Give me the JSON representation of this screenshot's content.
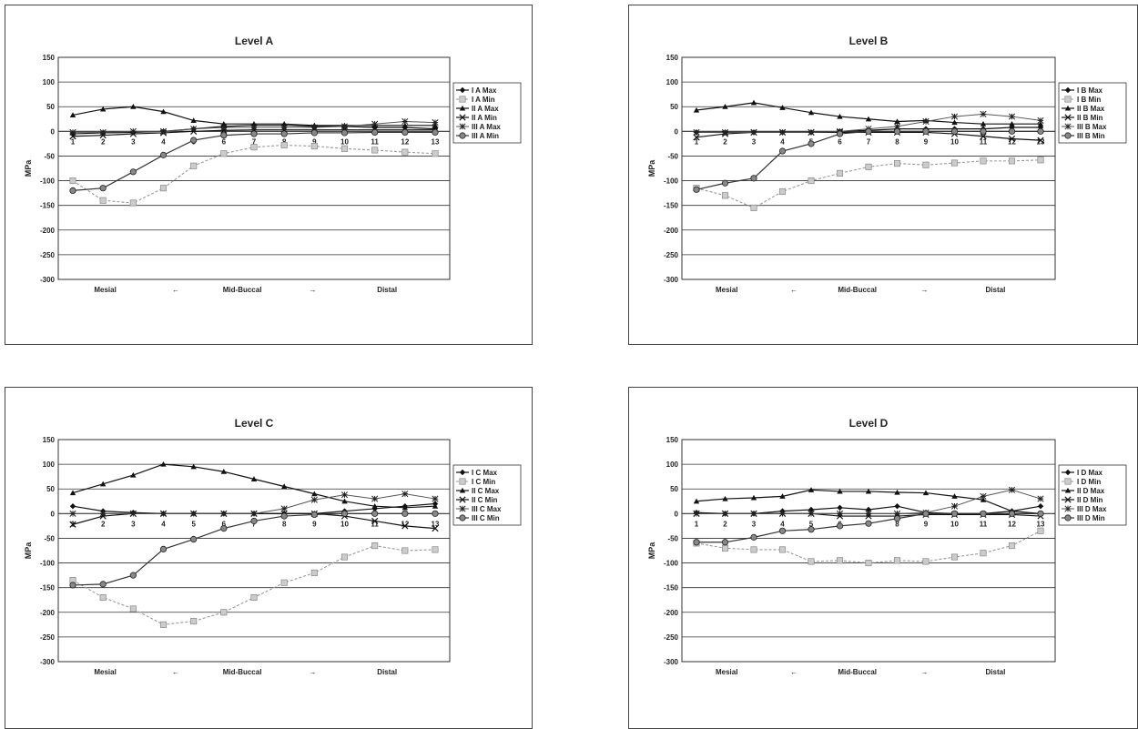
{
  "chart_data": [
    {
      "type": "line",
      "title": "Level A",
      "ylabel": "MPa",
      "ylim": [
        -300,
        150
      ],
      "yticks": [
        150,
        100,
        50,
        0,
        -50,
        -100,
        -150,
        -200,
        -250,
        -300
      ],
      "x": [
        1,
        2,
        3,
        4,
        5,
        6,
        7,
        8,
        9,
        10,
        11,
        12,
        13
      ],
      "xsub": {
        "left": "Mesial",
        "mid": "Mid-Buccal",
        "right": "Distal",
        "arrow_left": "←",
        "arrow_right": "→"
      },
      "grid": true,
      "legend": "right",
      "series": [
        {
          "name": "I A Max",
          "marker": "diamond",
          "line": "solid",
          "values": [
            -5,
            -3,
            -2,
            0,
            5,
            10,
            12,
            12,
            10,
            10,
            8,
            8,
            5
          ]
        },
        {
          "name": "I A Min",
          "marker": "x-box",
          "line": "dashed",
          "values": [
            -100,
            -140,
            -145,
            -115,
            -70,
            -45,
            -32,
            -28,
            -30,
            -35,
            -38,
            -42,
            -45
          ]
        },
        {
          "name": "II A Max",
          "marker": "triangle",
          "line": "solid",
          "values": [
            33,
            45,
            50,
            40,
            22,
            15,
            15,
            15,
            12,
            12,
            12,
            12,
            12
          ]
        },
        {
          "name": "II A Min",
          "marker": "x",
          "line": "solid",
          "values": [
            -10,
            -8,
            -5,
            -3,
            0,
            2,
            3,
            3,
            3,
            3,
            3,
            3,
            3
          ]
        },
        {
          "name": "III A Max",
          "marker": "star",
          "line": "solid",
          "values": [
            -2,
            -2,
            0,
            0,
            5,
            8,
            8,
            8,
            8,
            10,
            15,
            20,
            18
          ]
        },
        {
          "name": "III A Min",
          "marker": "circle",
          "line": "solid",
          "values": [
            -120,
            -115,
            -82,
            -48,
            -18,
            -8,
            -5,
            -5,
            -3,
            -3,
            -2,
            -2,
            -2
          ]
        }
      ]
    },
    {
      "type": "line",
      "title": "Level B",
      "ylabel": "MPa",
      "ylim": [
        -300,
        150
      ],
      "yticks": [
        150,
        100,
        50,
        0,
        -50,
        -100,
        -150,
        -200,
        -250,
        -300
      ],
      "x": [
        1,
        2,
        3,
        4,
        5,
        6,
        7,
        8,
        9,
        10,
        11,
        12,
        13
      ],
      "xsub": {
        "left": "Mesial",
        "mid": "Mid-Buccal",
        "right": "Distal",
        "arrow_left": "←",
        "arrow_right": "→"
      },
      "grid": true,
      "legend": "right",
      "series": [
        {
          "name": "I B Max",
          "marker": "diamond",
          "line": "solid",
          "values": [
            -2,
            -2,
            -2,
            -2,
            -2,
            0,
            2,
            5,
            5,
            5,
            5,
            8,
            8
          ]
        },
        {
          "name": "I B Min",
          "marker": "x-box",
          "line": "dashed",
          "values": [
            -115,
            -130,
            -155,
            -122,
            -100,
            -85,
            -72,
            -65,
            -68,
            -64,
            -60,
            -60,
            -58
          ]
        },
        {
          "name": "II B Max",
          "marker": "triangle",
          "line": "solid",
          "values": [
            43,
            50,
            58,
            48,
            38,
            30,
            25,
            20,
            22,
            18,
            15,
            15,
            15
          ]
        },
        {
          "name": "II B Min",
          "marker": "x",
          "line": "solid",
          "values": [
            -12,
            -5,
            -2,
            -2,
            -2,
            -2,
            -2,
            -2,
            -2,
            -5,
            -10,
            -15,
            -18
          ]
        },
        {
          "name": "III B Max",
          "marker": "star",
          "line": "solid",
          "values": [
            -2,
            -2,
            -2,
            -2,
            -2,
            0,
            5,
            10,
            20,
            30,
            35,
            30,
            22
          ]
        },
        {
          "name": "III B Min",
          "marker": "circle",
          "line": "solid",
          "values": [
            -118,
            -105,
            -95,
            -40,
            -25,
            -5,
            0,
            0,
            0,
            0,
            0,
            0,
            0
          ]
        }
      ]
    },
    {
      "type": "line",
      "title": "Level C",
      "ylabel": "MPa",
      "ylim": [
        -300,
        150
      ],
      "yticks": [
        150,
        100,
        50,
        0,
        -50,
        -100,
        -150,
        -200,
        -250,
        -300
      ],
      "x": [
        1,
        2,
        3,
        4,
        5,
        6,
        7,
        8,
        9,
        10,
        11,
        12,
        13
      ],
      "xsub": {
        "left": "Mesial",
        "mid": "Mid-Buccal",
        "right": "Distal",
        "arrow_left": "←",
        "arrow_right": "→"
      },
      "grid": true,
      "legend": "right",
      "series": [
        {
          "name": "I C Max",
          "marker": "diamond",
          "line": "solid",
          "values": [
            15,
            5,
            2,
            0,
            0,
            0,
            0,
            0,
            0,
            5,
            10,
            15,
            20
          ]
        },
        {
          "name": "I C Min",
          "marker": "x-box",
          "line": "dashed",
          "values": [
            -135,
            -170,
            -193,
            -225,
            -218,
            -200,
            -170,
            -140,
            -120,
            -88,
            -65,
            -75,
            -73
          ]
        },
        {
          "name": "II C Max",
          "marker": "triangle",
          "line": "solid",
          "values": [
            42,
            60,
            78,
            100,
            95,
            85,
            70,
            55,
            40,
            25,
            15,
            12,
            15
          ]
        },
        {
          "name": "II C Min",
          "marker": "x",
          "line": "solid",
          "values": [
            -22,
            -5,
            0,
            0,
            0,
            0,
            0,
            0,
            0,
            -5,
            -15,
            -25,
            -30
          ]
        },
        {
          "name": "III C Max",
          "marker": "star",
          "line": "solid",
          "values": [
            0,
            0,
            0,
            0,
            0,
            0,
            0,
            10,
            28,
            38,
            30,
            40,
            30
          ]
        },
        {
          "name": "III C Min",
          "marker": "circle",
          "line": "solid",
          "values": [
            -145,
            -143,
            -125,
            -72,
            -52,
            -30,
            -15,
            -5,
            -2,
            0,
            0,
            0,
            0
          ]
        }
      ]
    },
    {
      "type": "line",
      "title": "Level D",
      "ylabel": "MPa",
      "ylim": [
        -300,
        150
      ],
      "yticks": [
        150,
        100,
        50,
        0,
        -50,
        -100,
        -150,
        -200,
        -250,
        -300
      ],
      "x": [
        1,
        2,
        3,
        4,
        5,
        6,
        7,
        8,
        9,
        10,
        11,
        12,
        13
      ],
      "xsub": {
        "left": "Mesial",
        "mid": "Mid-Buccal",
        "right": "Distal",
        "arrow_left": "←",
        "arrow_right": "→"
      },
      "grid": true,
      "legend": "right",
      "series": [
        {
          "name": "I D Max",
          "marker": "diamond",
          "line": "solid",
          "values": [
            2,
            0,
            0,
            5,
            8,
            12,
            8,
            15,
            2,
            0,
            0,
            5,
            15
          ]
        },
        {
          "name": "I D Min",
          "marker": "x-box",
          "line": "dashed",
          "values": [
            -60,
            -70,
            -73,
            -73,
            -97,
            -95,
            -100,
            -95,
            -97,
            -88,
            -80,
            -65,
            -35
          ]
        },
        {
          "name": "II D Max",
          "marker": "triangle",
          "line": "solid",
          "values": [
            25,
            30,
            32,
            35,
            48,
            45,
            45,
            43,
            42,
            35,
            28,
            5,
            0
          ]
        },
        {
          "name": "II D Min",
          "marker": "x",
          "line": "solid",
          "values": [
            0,
            0,
            0,
            0,
            0,
            -5,
            -5,
            -5,
            -2,
            -2,
            -2,
            -2,
            -5
          ]
        },
        {
          "name": "III D Max",
          "marker": "star",
          "line": "solid",
          "values": [
            0,
            0,
            0,
            0,
            0,
            0,
            0,
            0,
            2,
            15,
            35,
            48,
            30
          ]
        },
        {
          "name": "III D Min",
          "marker": "circle",
          "line": "solid",
          "values": [
            -58,
            -58,
            -48,
            -35,
            -32,
            -25,
            -20,
            -10,
            0,
            0,
            0,
            0,
            0
          ]
        }
      ]
    }
  ]
}
